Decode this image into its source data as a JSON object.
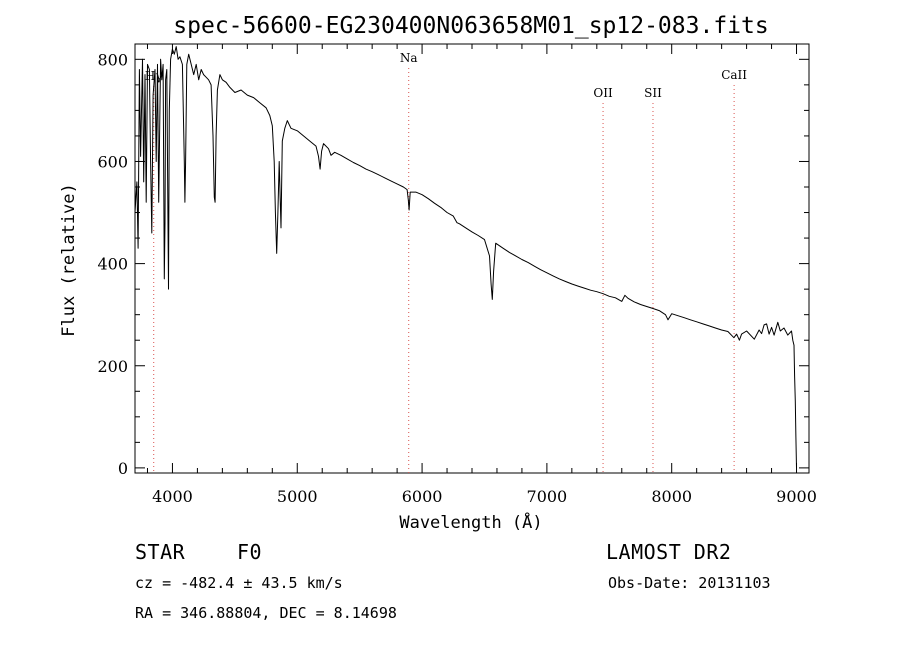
{
  "chart_data": {
    "type": "line",
    "title": "spec-56600-EG230400N063658M01_sp12-083.fits",
    "xlabel": "Wavelength (Å)",
    "ylabel": "Flux (relative)",
    "xlim": [
      3700,
      9100
    ],
    "ylim": [
      -10,
      830
    ],
    "xticks": [
      4000,
      5000,
      6000,
      7000,
      8000,
      9000
    ],
    "yticks": [
      0,
      200,
      400,
      600,
      800
    ],
    "grid": false,
    "series": [
      {
        "values": [
          [
            3700,
            500
          ],
          [
            3715,
            560
          ],
          [
            3725,
            430
          ],
          [
            3735,
            780
          ],
          [
            3745,
            610
          ],
          [
            3760,
            800
          ],
          [
            3770,
            560
          ],
          [
            3780,
            770
          ],
          [
            3790,
            520
          ],
          [
            3800,
            790
          ],
          [
            3815,
            780
          ],
          [
            3825,
            600
          ],
          [
            3835,
            460
          ],
          [
            3845,
            730
          ],
          [
            3860,
            780
          ],
          [
            3870,
            600
          ],
          [
            3880,
            790
          ],
          [
            3890,
            520
          ],
          [
            3905,
            800
          ],
          [
            3915,
            760
          ],
          [
            3925,
            790
          ],
          [
            3935,
            370
          ],
          [
            3940,
            480
          ],
          [
            3945,
            760
          ],
          [
            3955,
            780
          ],
          [
            3968,
            350
          ],
          [
            3975,
            700
          ],
          [
            3985,
            800
          ],
          [
            4000,
            820
          ],
          [
            4015,
            810
          ],
          [
            4030,
            825
          ],
          [
            4045,
            800
          ],
          [
            4060,
            805
          ],
          [
            4080,
            790
          ],
          [
            4095,
            600
          ],
          [
            4100,
            520
          ],
          [
            4105,
            600
          ],
          [
            4115,
            790
          ],
          [
            4130,
            810
          ],
          [
            4150,
            790
          ],
          [
            4170,
            770
          ],
          [
            4190,
            790
          ],
          [
            4210,
            760
          ],
          [
            4230,
            780
          ],
          [
            4250,
            770
          ],
          [
            4270,
            765
          ],
          [
            4290,
            760
          ],
          [
            4310,
            750
          ],
          [
            4325,
            650
          ],
          [
            4335,
            530
          ],
          [
            4342,
            520
          ],
          [
            4350,
            650
          ],
          [
            4360,
            740
          ],
          [
            4380,
            770
          ],
          [
            4400,
            760
          ],
          [
            4430,
            755
          ],
          [
            4460,
            745
          ],
          [
            4500,
            735
          ],
          [
            4550,
            740
          ],
          [
            4600,
            730
          ],
          [
            4650,
            725
          ],
          [
            4700,
            715
          ],
          [
            4750,
            705
          ],
          [
            4780,
            690
          ],
          [
            4800,
            670
          ],
          [
            4815,
            600
          ],
          [
            4825,
            500
          ],
          [
            4835,
            420
          ],
          [
            4845,
            500
          ],
          [
            4855,
            600
          ],
          [
            4870,
            470
          ],
          [
            4880,
            640
          ],
          [
            4900,
            665
          ],
          [
            4920,
            680
          ],
          [
            4950,
            665
          ],
          [
            5000,
            660
          ],
          [
            5050,
            650
          ],
          [
            5100,
            640
          ],
          [
            5150,
            630
          ],
          [
            5170,
            610
          ],
          [
            5183,
            585
          ],
          [
            5195,
            620
          ],
          [
            5210,
            635
          ],
          [
            5250,
            625
          ],
          [
            5270,
            612
          ],
          [
            5300,
            618
          ],
          [
            5350,
            612
          ],
          [
            5400,
            605
          ],
          [
            5450,
            598
          ],
          [
            5500,
            592
          ],
          [
            5550,
            585
          ],
          [
            5600,
            580
          ],
          [
            5650,
            574
          ],
          [
            5700,
            568
          ],
          [
            5750,
            562
          ],
          [
            5800,
            556
          ],
          [
            5850,
            550
          ],
          [
            5880,
            545
          ],
          [
            5890,
            525
          ],
          [
            5896,
            505
          ],
          [
            5905,
            540
          ],
          [
            5950,
            540
          ],
          [
            6000,
            535
          ],
          [
            6050,
            527
          ],
          [
            6100,
            518
          ],
          [
            6150,
            510
          ],
          [
            6200,
            500
          ],
          [
            6250,
            493
          ],
          [
            6280,
            480
          ],
          [
            6300,
            478
          ],
          [
            6350,
            470
          ],
          [
            6400,
            462
          ],
          [
            6450,
            455
          ],
          [
            6500,
            447
          ],
          [
            6540,
            415
          ],
          [
            6553,
            360
          ],
          [
            6563,
            330
          ],
          [
            6573,
            385
          ],
          [
            6590,
            440
          ],
          [
            6650,
            430
          ],
          [
            6700,
            422
          ],
          [
            6750,
            415
          ],
          [
            6800,
            408
          ],
          [
            6850,
            402
          ],
          [
            6900,
            395
          ],
          [
            6950,
            388
          ],
          [
            7000,
            382
          ],
          [
            7050,
            376
          ],
          [
            7100,
            370
          ],
          [
            7150,
            365
          ],
          [
            7200,
            360
          ],
          [
            7250,
            356
          ],
          [
            7300,
            352
          ],
          [
            7350,
            348
          ],
          [
            7400,
            345
          ],
          [
            7450,
            341
          ],
          [
            7500,
            336
          ],
          [
            7550,
            333
          ],
          [
            7600,
            326
          ],
          [
            7625,
            338
          ],
          [
            7650,
            332
          ],
          [
            7700,
            325
          ],
          [
            7750,
            320
          ],
          [
            7800,
            316
          ],
          [
            7850,
            312
          ],
          [
            7900,
            308
          ],
          [
            7950,
            300
          ],
          [
            7970,
            290
          ],
          [
            7990,
            298
          ],
          [
            8000,
            302
          ],
          [
            8050,
            298
          ],
          [
            8100,
            294
          ],
          [
            8150,
            290
          ],
          [
            8200,
            286
          ],
          [
            8250,
            282
          ],
          [
            8300,
            278
          ],
          [
            8350,
            274
          ],
          [
            8400,
            270
          ],
          [
            8450,
            267
          ],
          [
            8498,
            255
          ],
          [
            8520,
            262
          ],
          [
            8542,
            250
          ],
          [
            8560,
            262
          ],
          [
            8600,
            268
          ],
          [
            8662,
            252
          ],
          [
            8700,
            270
          ],
          [
            8720,
            263
          ],
          [
            8740,
            280
          ],
          [
            8760,
            282
          ],
          [
            8780,
            262
          ],
          [
            8800,
            275
          ],
          [
            8820,
            260
          ],
          [
            8850,
            285
          ],
          [
            8870,
            268
          ],
          [
            8900,
            274
          ],
          [
            8930,
            260
          ],
          [
            8960,
            268
          ],
          [
            8970,
            250
          ],
          [
            8980,
            240
          ],
          [
            8985,
            180
          ],
          [
            8990,
            130
          ],
          [
            8995,
            60
          ],
          [
            9000,
            0
          ]
        ]
      }
    ],
    "lines": [
      {
        "label": "Hγ",
        "x": 3850
      },
      {
        "label": "Na",
        "x": 5893
      },
      {
        "label": "OII",
        "x": 7450
      },
      {
        "label": "SII",
        "x": 7850
      },
      {
        "label": "CaII",
        "x": 8500
      }
    ],
    "colors": {
      "line": "#000000",
      "marker": "#d9534f"
    }
  },
  "info": {
    "object_class": "STAR",
    "subclass": "F0",
    "survey": "LAMOST DR2",
    "redshift": "cz = -482.4 ± 43.5 km/s",
    "obs_date": "Obs-Date: 20131103",
    "coords": "RA = 346.88804, DEC =   8.14698"
  }
}
